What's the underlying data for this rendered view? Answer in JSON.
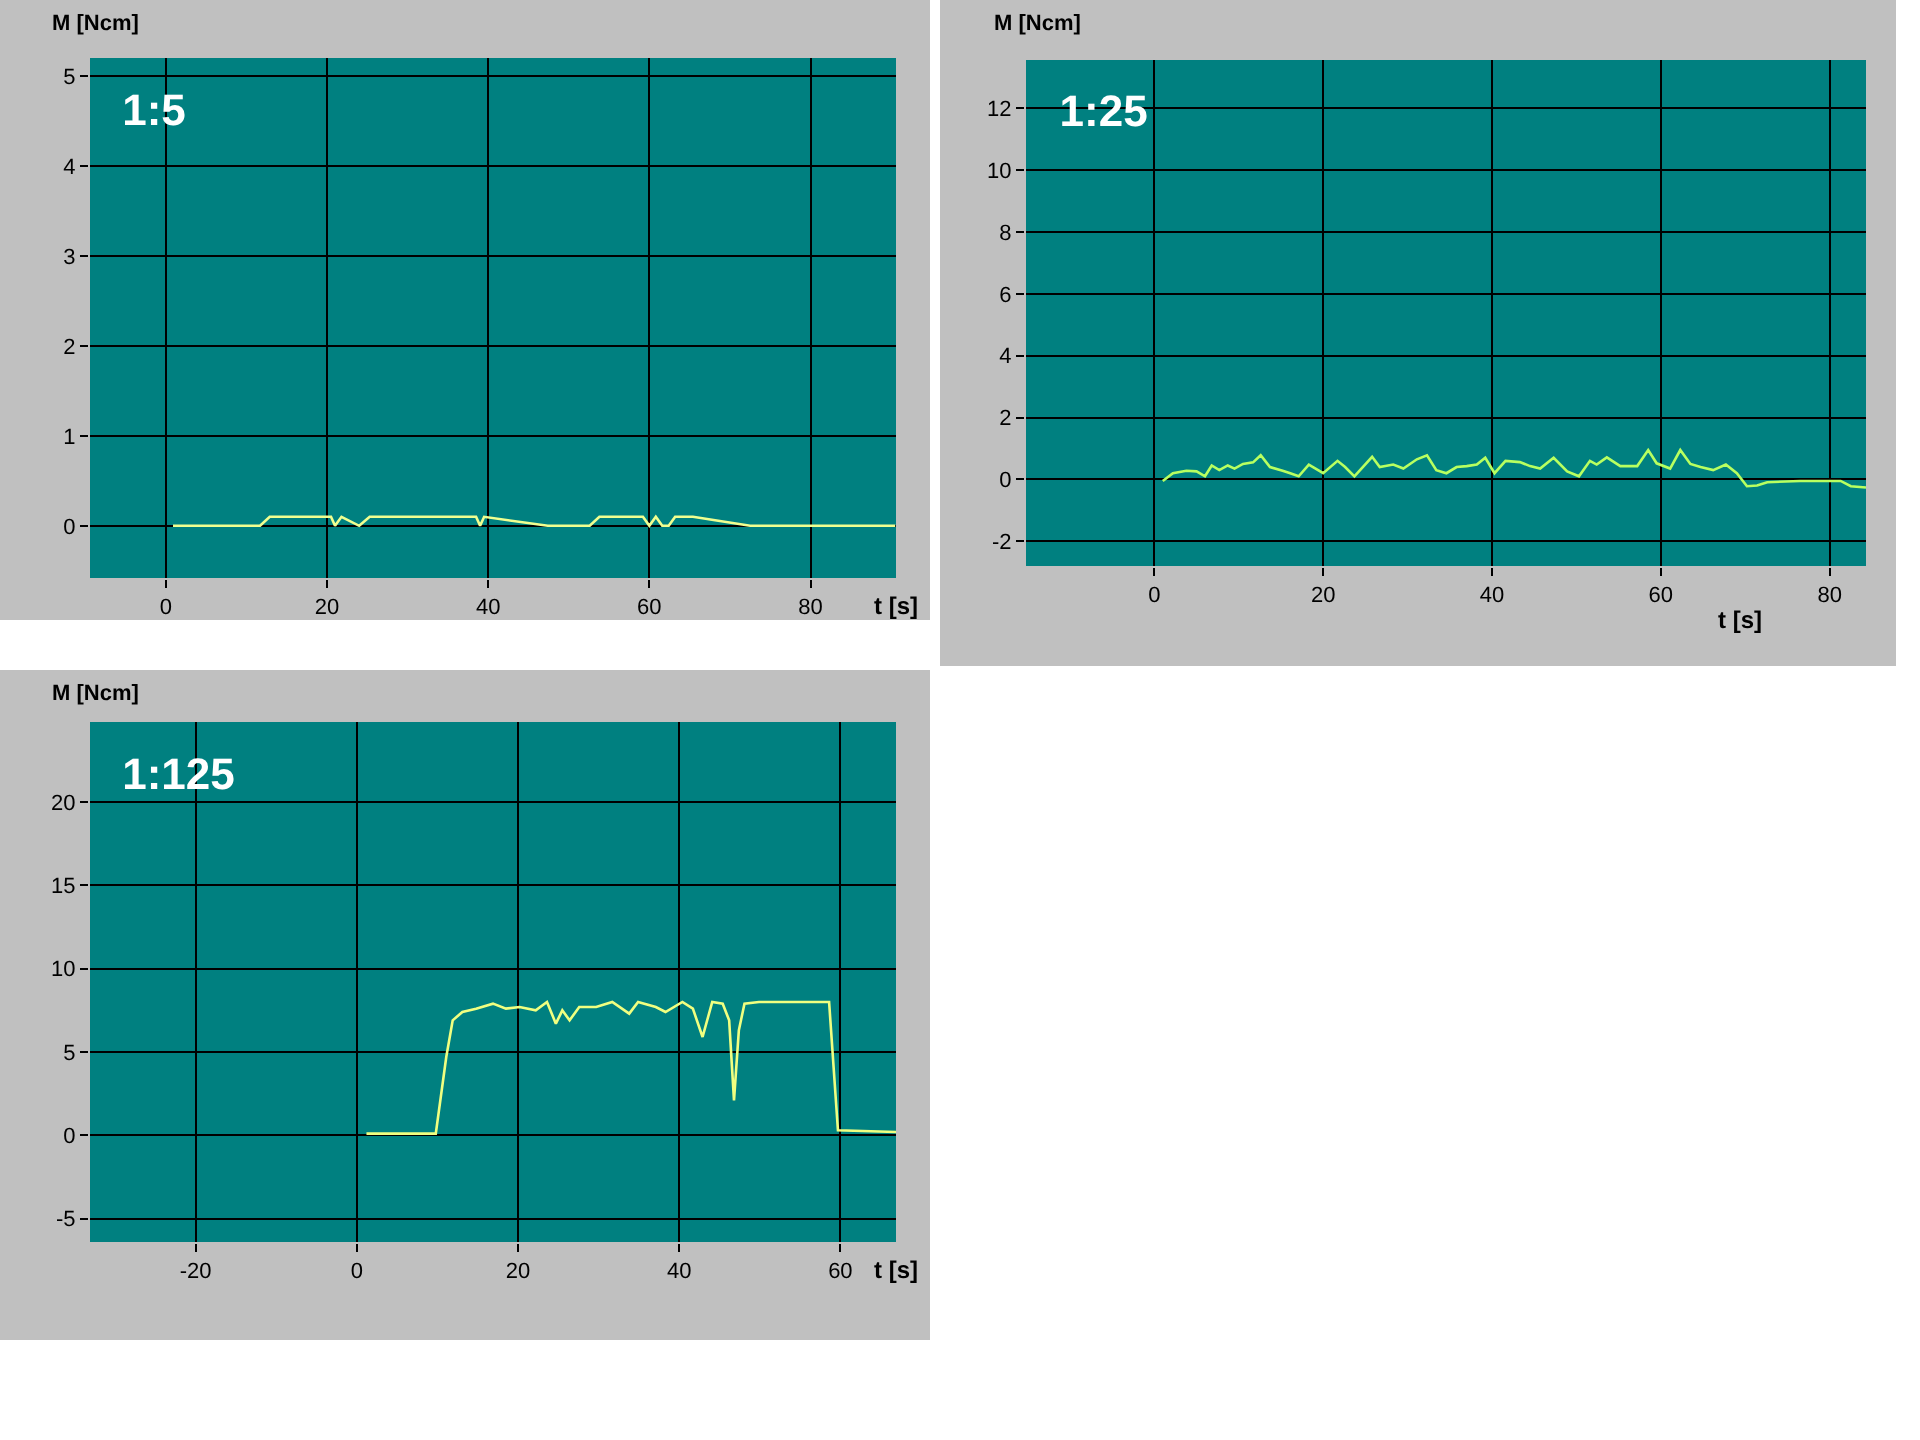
{
  "chart_data": [
    {
      "type": "line",
      "title": "1:5",
      "ylabel": "M [Ncm]",
      "xlabel": "t [s]",
      "xlim": [
        -9.4,
        90.6
      ],
      "ylim": [
        -0.58,
        5.2
      ],
      "xticks": [
        0,
        20,
        40,
        60,
        80
      ],
      "yticks": [
        0,
        1,
        2,
        3,
        4,
        5
      ],
      "grid": true,
      "marker": "none",
      "line_style": "solid",
      "series": [
        {
          "color": "#f0ff90",
          "x": [
            0.9,
            11.7,
            12.9,
            20.5,
            21,
            21.8,
            24,
            25.3,
            38.5,
            39,
            39.5,
            47.4,
            52.6,
            53.8,
            59.2,
            60,
            60.8,
            61.6,
            62.4,
            63.2,
            64,
            65.4,
            72.5,
            90.5
          ],
          "values": [
            0,
            0,
            0.1,
            0.1,
            0,
            0.1,
            0,
            0.1,
            0.1,
            0,
            0.1,
            0,
            0,
            0.1,
            0.1,
            0,
            0.1,
            0,
            0,
            0.1,
            0.1,
            0.1,
            0,
            0
          ]
        }
      ]
    },
    {
      "type": "line",
      "title": "1:25",
      "ylabel": "M [Ncm]",
      "xlabel": "t [s]",
      "xlim": [
        -15.2,
        84.3
      ],
      "ylim": [
        -2.8,
        13.56
      ],
      "xticks": [
        0,
        20,
        40,
        60,
        80
      ],
      "yticks": [
        -2,
        0,
        2,
        4,
        6,
        8,
        10,
        12
      ],
      "grid": true,
      "marker": "none",
      "line_style": "solid",
      "series": [
        {
          "color": "#b8ff60",
          "x": [
            1.0,
            2.2,
            3.8,
            5.0,
            6.0,
            6.8,
            7.7,
            8.7,
            9.5,
            10.5,
            11.7,
            12.6,
            13.7,
            15.2,
            16.1,
            17.1,
            18.3,
            19.1,
            20.0,
            21.7,
            22.6,
            23.7,
            25.8,
            26.7,
            28.3,
            29.5,
            31.1,
            32.3,
            33.4,
            34.6,
            35.8,
            37.0,
            38.2,
            39.2,
            40.3,
            41.6,
            43.3,
            44.5,
            45.7,
            47.3,
            48.9,
            50.3,
            51.6,
            52.4,
            53.6,
            55.2,
            57.2,
            58.5,
            59.5,
            61.1,
            62.3,
            63.5,
            64.7,
            66.2,
            67.7,
            69.0,
            70.2,
            71.4,
            72.6,
            76.5,
            81.3,
            82.5,
            84.3
          ],
          "values": [
            -0.05,
            0.2,
            0.28,
            0.26,
            0.1,
            0.45,
            0.3,
            0.45,
            0.35,
            0.5,
            0.55,
            0.78,
            0.4,
            0.28,
            0.2,
            0.1,
            0.48,
            0.35,
            0.2,
            0.6,
            0.4,
            0.1,
            0.73,
            0.4,
            0.48,
            0.35,
            0.65,
            0.78,
            0.3,
            0.2,
            0.4,
            0.43,
            0.48,
            0.7,
            0.2,
            0.6,
            0.56,
            0.43,
            0.35,
            0.7,
            0.26,
            0.1,
            0.6,
            0.48,
            0.71,
            0.43,
            0.43,
            0.95,
            0.52,
            0.35,
            0.95,
            0.5,
            0.4,
            0.3,
            0.48,
            0.2,
            -0.22,
            -0.2,
            -0.09,
            -0.05,
            -0.05,
            -0.22,
            -0.26
          ]
        }
      ]
    },
    {
      "type": "line",
      "title": "1:125",
      "ylabel": "M [Ncm]",
      "xlabel": "t [s]",
      "xlim": [
        -33.1,
        66.9
      ],
      "ylim": [
        -6.4,
        24.8
      ],
      "xticks": [
        -20,
        0,
        20,
        40,
        60
      ],
      "yticks": [
        -5,
        0,
        5,
        10,
        15,
        20
      ],
      "grid": true,
      "marker": "none",
      "line_style": "solid",
      "series": [
        {
          "color": "#f0ff80",
          "x": [
            1.2,
            9.8,
            11.1,
            11.9,
            13.1,
            14.8,
            16.9,
            18.5,
            20.2,
            22.2,
            23.6,
            24.7,
            25.5,
            26.4,
            27.6,
            29.7,
            31.7,
            33.8,
            34.9,
            37.1,
            38.3,
            40.4,
            41.7,
            42.9,
            44.1,
            45.4,
            46.2,
            46.8,
            47.4,
            48.1,
            49.9,
            54.9,
            58.6,
            59.7,
            66.9
          ],
          "values": [
            0.1,
            0.1,
            4.7,
            6.9,
            7.4,
            7.6,
            7.9,
            7.6,
            7.7,
            7.5,
            8.0,
            6.7,
            7.5,
            6.9,
            7.7,
            7.7,
            8.0,
            7.3,
            8.0,
            7.7,
            7.4,
            8.0,
            7.6,
            5.9,
            8.0,
            7.9,
            6.9,
            2.1,
            6.3,
            7.9,
            8.0,
            8.0,
            8.0,
            0.3,
            0.2
          ]
        }
      ]
    }
  ]
}
